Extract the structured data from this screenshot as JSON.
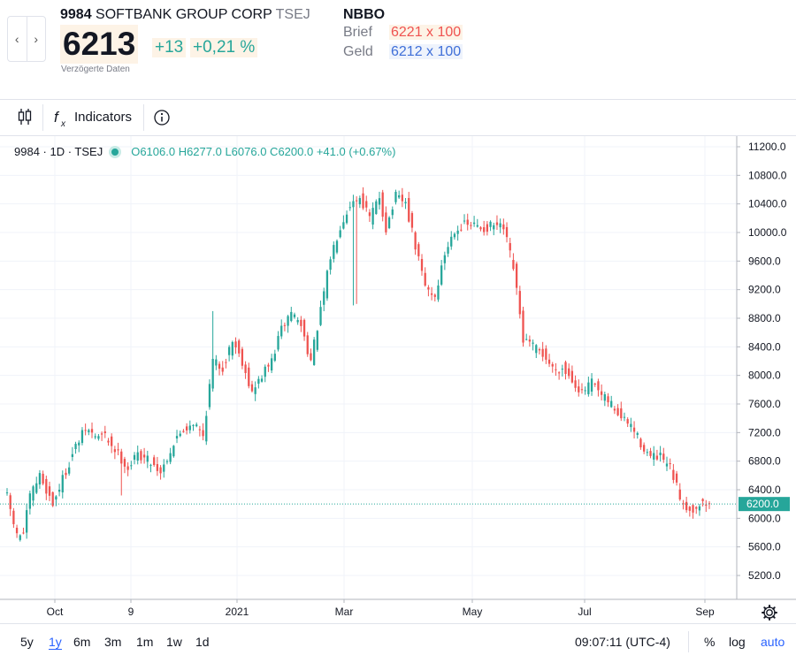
{
  "header": {
    "ticker": "9984",
    "company": "SOFTBANK GROUP CORP",
    "exchange": "TSEJ",
    "price": "6213",
    "change": "+13",
    "change_pct": "+0,21 %",
    "delayed_note": "Verzögerte Daten",
    "nav_prev": "‹",
    "nav_next": "›"
  },
  "nbbo": {
    "title": "NBBO",
    "ask_label": "Brief",
    "ask_value": "6221 x 100",
    "bid_label": "Geld",
    "bid_value": "6212 x 100"
  },
  "toolbar": {
    "indicators_label": "Indicators",
    "candles_icon": "candlestick-icon",
    "fx_icon": "function-icon",
    "info_icon": "info-icon"
  },
  "legend": {
    "symbol": "9984 · 1D · TSEJ",
    "ohlc": "O6106.0 H6277.0 L6076.0 C6200.0 +41.0 (+0.67%)"
  },
  "chart_data": {
    "type": "candlestick",
    "x_ticks": [
      "Oct",
      "9",
      "2021",
      "Mar",
      "May",
      "Jul",
      "Sep"
    ],
    "y_ticks": [
      "11200.0",
      "10800.0",
      "10400.0",
      "10000.0",
      "9600.0",
      "9200.0",
      "8800.0",
      "8400.0",
      "8000.0",
      "7600.0",
      "7200.0",
      "6800.0",
      "6400.0",
      "6000.0",
      "5600.0",
      "5200.0"
    ],
    "ylim": [
      4900,
      11300
    ],
    "last_price": "6200.0",
    "up_color": "#26a69a",
    "down_color": "#ef5350",
    "grid": true,
    "close_path": [
      [
        0,
        6300
      ],
      [
        3,
        5750
      ],
      [
        5,
        5800
      ],
      [
        7,
        6300
      ],
      [
        10,
        6600
      ],
      [
        14,
        6200
      ],
      [
        17,
        6550
      ],
      [
        21,
        7000
      ],
      [
        24,
        7250
      ],
      [
        27,
        7150
      ],
      [
        30,
        7150
      ],
      [
        34,
        6900
      ],
      [
        37,
        6700
      ],
      [
        40,
        6900
      ],
      [
        44,
        6800
      ],
      [
        47,
        6650
      ],
      [
        50,
        6950
      ],
      [
        53,
        7200
      ],
      [
        57,
        7350
      ],
      [
        60,
        7150
      ],
      [
        63,
        8200
      ],
      [
        66,
        8100
      ],
      [
        69,
        8500
      ],
      [
        72,
        8200
      ],
      [
        75,
        7750
      ],
      [
        78,
        8000
      ],
      [
        81,
        8200
      ],
      [
        84,
        8650
      ],
      [
        87,
        8900
      ],
      [
        90,
        8700
      ],
      [
        93,
        8200
      ],
      [
        96,
        8900
      ],
      [
        99,
        9650
      ],
      [
        102,
        10100
      ],
      [
        105,
        10400
      ],
      [
        108,
        10500
      ],
      [
        111,
        10200
      ],
      [
        114,
        10500
      ],
      [
        116,
        10050
      ],
      [
        119,
        10500
      ],
      [
        122,
        10400
      ],
      [
        125,
        9800
      ],
      [
        128,
        9250
      ],
      [
        131,
        9100
      ],
      [
        134,
        9700
      ],
      [
        137,
        10050
      ],
      [
        140,
        10100
      ],
      [
        143,
        10100
      ],
      [
        146,
        10050
      ],
      [
        149,
        10100
      ],
      [
        152,
        10050
      ],
      [
        155,
        9500
      ],
      [
        158,
        8500
      ],
      [
        161,
        8400
      ],
      [
        164,
        8300
      ],
      [
        167,
        8100
      ],
      [
        170,
        8100
      ],
      [
        173,
        7950
      ],
      [
        176,
        7750
      ],
      [
        179,
        7900
      ],
      [
        182,
        7700
      ],
      [
        185,
        7600
      ],
      [
        188,
        7400
      ],
      [
        191,
        7300
      ],
      [
        194,
        7050
      ],
      [
        197,
        6850
      ],
      [
        200,
        6850
      ],
      [
        203,
        6700
      ],
      [
        206,
        6300
      ],
      [
        209,
        6100
      ],
      [
        212,
        6200
      ],
      [
        215,
        6200
      ]
    ],
    "spikes": [
      {
        "i": 35,
        "low": 6320
      },
      {
        "i": 63,
        "high": 8900
      },
      {
        "i": 106,
        "low": 8980
      },
      {
        "i": 107,
        "low": 9000
      }
    ]
  },
  "bottom": {
    "ranges": [
      "5y",
      "1y",
      "6m",
      "3m",
      "1m",
      "1w",
      "1d"
    ],
    "active_range": "1y",
    "time": "09:07:11 (UTC-4)",
    "pct_label": "%",
    "log_label": "log",
    "auto_label": "auto",
    "settings_icon": "gear-icon"
  }
}
